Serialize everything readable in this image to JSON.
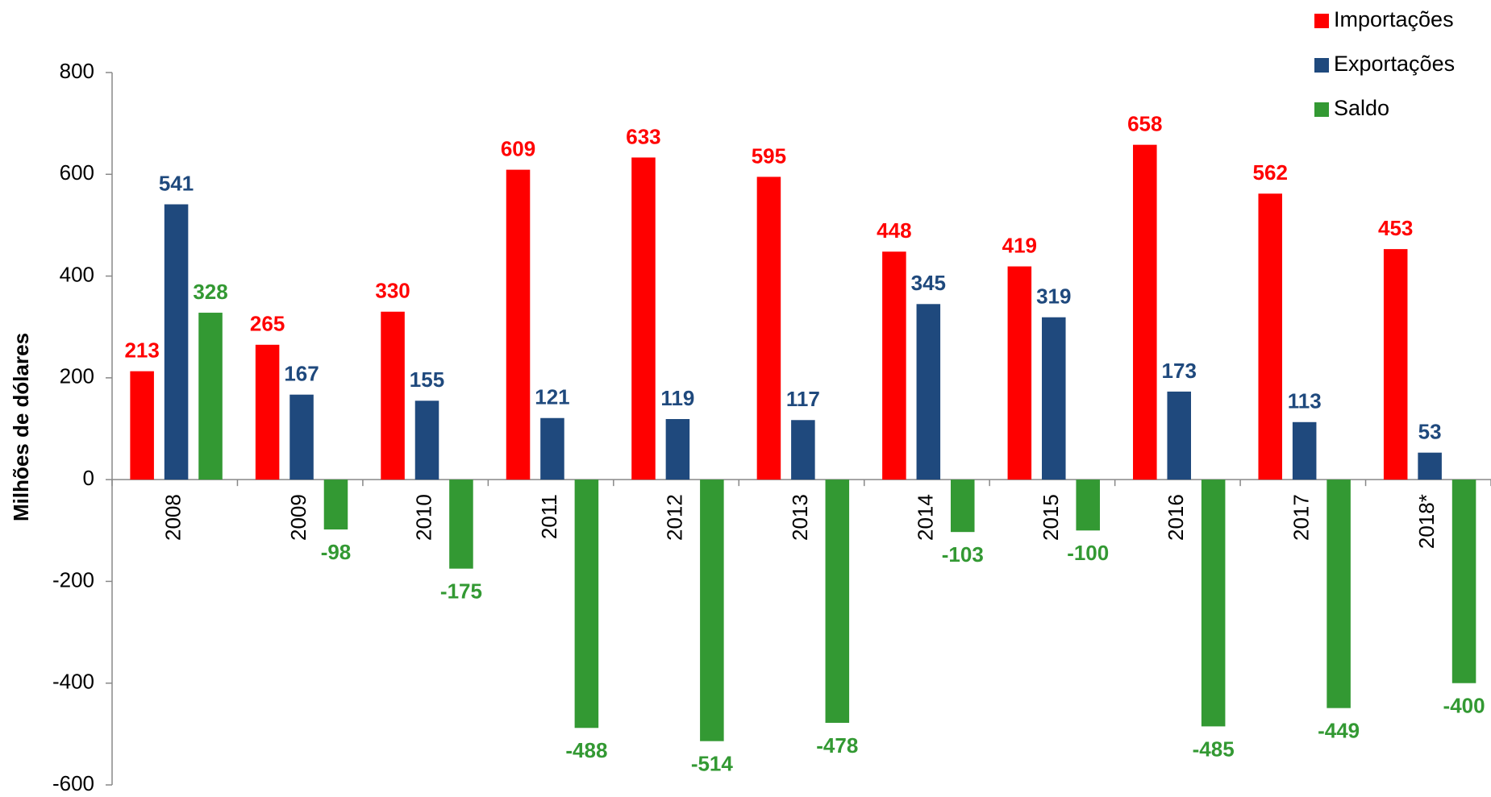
{
  "chart_data": {
    "type": "bar",
    "y_label": "Milhões de dólares",
    "categories": [
      "2008",
      "2009",
      "2010",
      "2011",
      "2012",
      "2013",
      "2014",
      "2015",
      "2016",
      "2017",
      "2018*"
    ],
    "series": [
      {
        "name": "Importações",
        "color": "#ff0000",
        "values": [
          213,
          265,
          330,
          609,
          633,
          595,
          448,
          419,
          658,
          562,
          453
        ]
      },
      {
        "name": "Exportações",
        "color": "#1f497d",
        "values": [
          541,
          167,
          155,
          121,
          119,
          117,
          345,
          319,
          173,
          113,
          53
        ]
      },
      {
        "name": "Saldo",
        "color": "#339933",
        "values": [
          328,
          -98,
          -175,
          -488,
          -514,
          -478,
          -103,
          -100,
          -485,
          -449,
          -400
        ]
      }
    ],
    "ylim": [
      -600,
      800
    ],
    "yticks": [
      -600,
      -400,
      -200,
      0,
      200,
      400,
      600,
      800
    ],
    "legend": "top-right"
  }
}
